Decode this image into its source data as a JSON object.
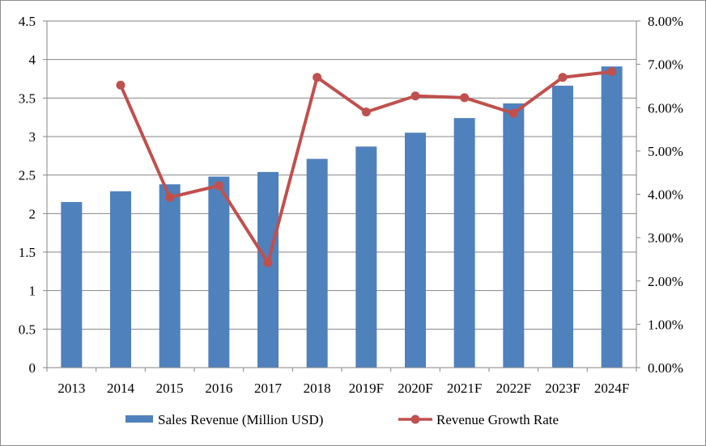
{
  "chart_data": {
    "type": "bar",
    "categories": [
      "2013",
      "2014",
      "2015",
      "2016",
      "2017",
      "2018",
      "2019F",
      "2020F",
      "2021F",
      "2022F",
      "2023F",
      "2024F"
    ],
    "series": [
      {
        "name": "Sales Revenue (Million USD)",
        "type": "bar",
        "axis": "left",
        "color": "#4f81bd",
        "values": [
          2.15,
          2.29,
          2.38,
          2.48,
          2.54,
          2.71,
          2.87,
          3.05,
          3.24,
          3.43,
          3.66,
          3.91
        ]
      },
      {
        "name": "Revenue Growth Rate",
        "type": "line",
        "axis": "right",
        "color": "#c0504d",
        "values": [
          null,
          6.52,
          3.93,
          4.2,
          2.42,
          6.7,
          5.9,
          6.27,
          6.23,
          5.87,
          6.7,
          6.83
        ]
      }
    ],
    "y_left": {
      "min": 0,
      "max": 4.5,
      "step": 0.5,
      "tick_labels": [
        "0",
        "0.5",
        "1",
        "1.5",
        "2",
        "2.5",
        "3",
        "3.5",
        "4",
        "4.5"
      ]
    },
    "y_right": {
      "min": 0,
      "max": 8,
      "step": 1,
      "tick_labels": [
        "0.00%",
        "1.00%",
        "2.00%",
        "3.00%",
        "4.00%",
        "5.00%",
        "6.00%",
        "7.00%",
        "8.00%"
      ]
    },
    "grid": true,
    "legend_position": "bottom",
    "gridline_color": "#868686"
  }
}
